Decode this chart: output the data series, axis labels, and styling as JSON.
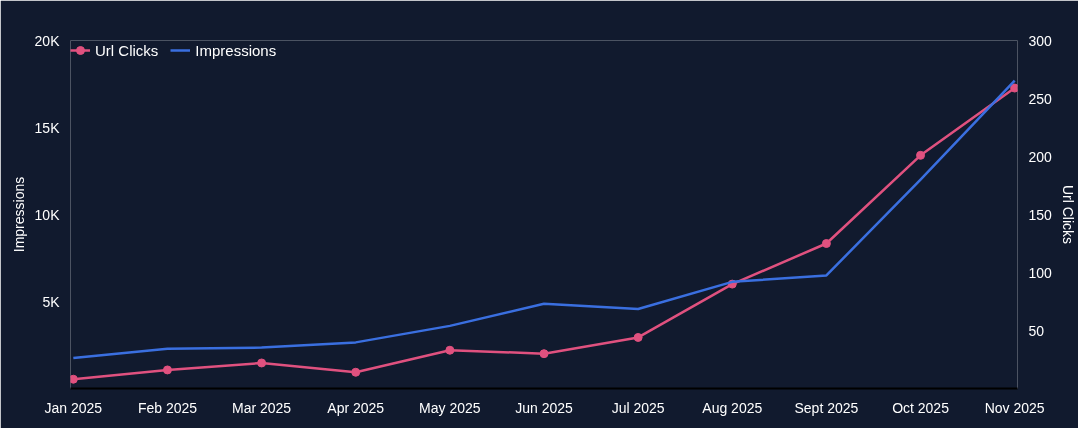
{
  "chart_data": {
    "type": "line",
    "categories": [
      "Jan 2025",
      "Feb 2025",
      "Mar 2025",
      "Apr 2025",
      "May 2025",
      "Jun 2025",
      "Jul 2025",
      "Aug 2025",
      "Sept 2025",
      "Oct 2025",
      "Nov 2025"
    ],
    "series": [
      {
        "name": "Url Clicks",
        "color": "#e0517f",
        "axis": "y2",
        "marker": "circle",
        "values": [
          8,
          16,
          22,
          14,
          33,
          30,
          44,
          90,
          125,
          201,
          259
        ]
      },
      {
        "name": "Impressions",
        "color": "#3a6fe0",
        "marker": "none",
        "values": [
          1750,
          2290,
          2350,
          2650,
          3600,
          4870,
          4570,
          6130,
          6500,
          12000,
          17700
        ]
      }
    ],
    "ylabel": "Impressions",
    "y2label": "Url Clicks",
    "ylim": [
      0,
      20000
    ],
    "yticks": [
      {
        "value": 5000,
        "label": "5K"
      },
      {
        "value": 10000,
        "label": "10K"
      },
      {
        "value": 15000,
        "label": "15K"
      },
      {
        "value": 20000,
        "label": "20K"
      }
    ],
    "y2lim": [
      0,
      300
    ],
    "y2ticks": [
      50,
      100,
      150,
      200,
      250,
      300
    ],
    "grid": false,
    "legend": "top left",
    "line_style": "solid"
  }
}
